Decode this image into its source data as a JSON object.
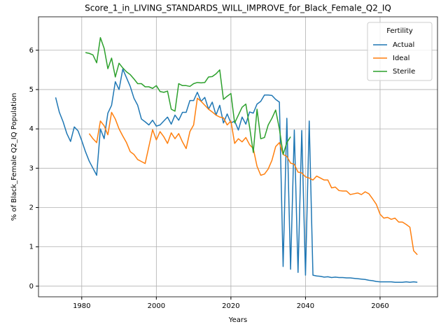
{
  "chart_data": {
    "type": "line",
    "title": "Score_1_in_LIVING_STANDARDS_WILL_IMPROVE_for_Black_Female_Q2_IQ",
    "xlabel": "Years",
    "ylabel": "% of Black_Female Q2_IQ Population",
    "legend_title": "Fertility",
    "legend": "upper right",
    "grid": true,
    "xlim": [
      1968.4,
      2075.4
    ],
    "ylim": [
      -0.27,
      6.85
    ],
    "xticks": [
      1980,
      2000,
      2020,
      2040,
      2060
    ],
    "yticks": [
      0,
      1,
      2,
      3,
      4,
      5,
      6
    ],
    "x": [
      1973,
      1974,
      1975,
      1976,
      1977,
      1978,
      1979,
      1980,
      1981,
      1982,
      1983,
      1984,
      1985,
      1986,
      1987,
      1988,
      1989,
      1990,
      1991,
      1992,
      1993,
      1994,
      1995,
      1996,
      1997,
      1998,
      1999,
      2000,
      2001,
      2002,
      2003,
      2004,
      2005,
      2006,
      2007,
      2008,
      2009,
      2010,
      2011,
      2012,
      2013,
      2014,
      2015,
      2016,
      2017,
      2018,
      2019,
      2020,
      2021,
      2022,
      2023,
      2024,
      2025,
      2026,
      2027,
      2028,
      2029,
      2030,
      2031,
      2032,
      2033,
      2034,
      2035,
      2036,
      2037,
      2038,
      2039,
      2040,
      2041,
      2042,
      2043,
      2044,
      2045,
      2046,
      2047,
      2048,
      2049,
      2050,
      2051,
      2052,
      2053,
      2054,
      2055,
      2056,
      2057,
      2058,
      2059,
      2060,
      2061,
      2062,
      2063,
      2064,
      2065,
      2066,
      2067,
      2068,
      2069,
      2070
    ],
    "series": [
      {
        "name": "Actual",
        "color": "#1f77b4",
        "values": [
          4.8,
          4.42,
          4.18,
          3.88,
          3.68,
          4.05,
          3.95,
          3.7,
          3.42,
          3.18,
          3.0,
          2.82,
          4.0,
          3.75,
          4.4,
          4.6,
          5.2,
          5.0,
          5.52,
          5.3,
          5.08,
          4.78,
          4.6,
          4.25,
          4.18,
          4.1,
          4.22,
          4.07,
          4.1,
          4.2,
          4.3,
          4.12,
          4.35,
          4.22,
          4.42,
          4.42,
          4.72,
          4.72,
          4.93,
          4.7,
          4.8,
          4.5,
          4.68,
          4.35,
          4.6,
          4.15,
          4.38,
          4.15,
          4.2,
          3.97,
          4.3,
          4.12,
          4.43,
          4.4,
          4.63,
          4.7,
          4.86,
          4.86,
          4.85,
          4.75,
          4.68,
          0.5,
          4.27,
          0.43,
          3.97,
          0.35,
          3.96,
          0.28,
          4.2,
          0.28,
          0.26,
          0.25,
          0.23,
          0.24,
          0.22,
          0.23,
          0.22,
          0.22,
          0.21,
          0.21,
          0.2,
          0.19,
          0.18,
          0.17,
          0.15,
          0.14,
          0.12,
          0.11,
          0.11,
          0.11,
          0.11,
          0.1,
          0.1,
          0.1,
          0.11,
          0.1,
          0.11,
          0.1
        ]
      },
      {
        "name": "Ideal",
        "color": "#ff7f0e",
        "values": [
          null,
          null,
          null,
          null,
          null,
          null,
          null,
          null,
          null,
          3.88,
          3.75,
          3.65,
          4.2,
          4.08,
          3.85,
          4.42,
          4.25,
          4.0,
          3.82,
          3.65,
          3.42,
          3.35,
          3.22,
          3.17,
          3.12,
          3.55,
          3.98,
          3.72,
          3.93,
          3.8,
          3.63,
          3.9,
          3.75,
          3.88,
          3.67,
          3.5,
          3.93,
          4.1,
          4.78,
          4.7,
          4.6,
          4.5,
          4.43,
          4.35,
          4.3,
          4.28,
          4.1,
          4.2,
          3.63,
          3.75,
          3.67,
          3.78,
          3.6,
          3.5,
          3.05,
          2.82,
          2.85,
          2.98,
          3.2,
          3.55,
          3.65,
          3.35,
          3.3,
          3.13,
          3.1,
          2.9,
          2.88,
          2.78,
          2.75,
          2.7,
          2.8,
          2.75,
          2.7,
          2.7,
          2.5,
          2.52,
          2.43,
          2.42,
          2.42,
          2.33,
          2.35,
          2.37,
          2.33,
          2.4,
          2.35,
          2.22,
          2.08,
          1.83,
          1.73,
          1.75,
          1.7,
          1.73,
          1.63,
          1.63,
          1.57,
          1.5,
          0.9,
          0.8
        ]
      },
      {
        "name": "Sterile",
        "color": "#2ca02c",
        "values": [
          null,
          null,
          null,
          null,
          null,
          null,
          null,
          null,
          5.94,
          5.92,
          5.88,
          5.68,
          6.32,
          6.05,
          5.53,
          5.8,
          5.32,
          5.67,
          5.55,
          5.45,
          5.38,
          5.27,
          5.15,
          5.15,
          5.07,
          5.07,
          5.03,
          5.1,
          4.95,
          4.93,
          4.96,
          4.5,
          4.45,
          5.15,
          5.1,
          5.1,
          5.08,
          5.15,
          5.18,
          5.17,
          5.18,
          5.32,
          5.33,
          5.4,
          5.5,
          4.75,
          4.83,
          4.9,
          4.15,
          4.35,
          4.55,
          4.63,
          4.05,
          3.4,
          4.5,
          3.75,
          3.78,
          4.1,
          4.27,
          4.48,
          4.0,
          3.35,
          3.65,
          3.8,
          null,
          null,
          null,
          null,
          null,
          null,
          null,
          null,
          null,
          null,
          null,
          null,
          null,
          null,
          null,
          null,
          null,
          null,
          null,
          null,
          null,
          null,
          null,
          null,
          null,
          null,
          null,
          null,
          null,
          null,
          null,
          null,
          null,
          null
        ]
      }
    ]
  }
}
